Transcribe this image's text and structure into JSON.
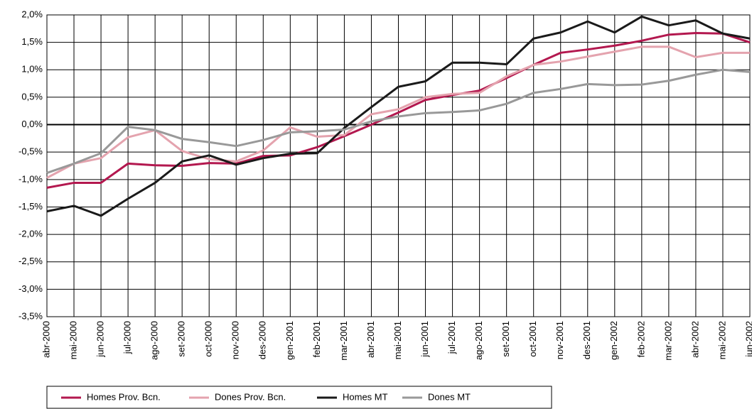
{
  "chart_data": {
    "type": "line",
    "categories": [
      "abr-2000",
      "mai-2000",
      "jun-2000",
      "jul-2000",
      "ago-2000",
      "set-2000",
      "oct-2000",
      "nov-2000",
      "des-2000",
      "gen-2001",
      "feb-2001",
      "mar-2001",
      "abr-2001",
      "mai-2001",
      "jun-2001",
      "jul-2001",
      "ago-2001",
      "set-2001",
      "oct-2001",
      "nov-2001",
      "des-2001",
      "gen-2002",
      "feb-2002",
      "mar-2002",
      "abr-2002",
      "mai-2002",
      "jun-2002"
    ],
    "series": [
      {
        "name": "Homes Prov. Bcn.",
        "color": "#b3184f",
        "values": [
          -1.15,
          -1.06,
          -1.06,
          -0.71,
          -0.74,
          -0.75,
          -0.7,
          -0.71,
          -0.57,
          -0.56,
          -0.41,
          -0.21,
          0.0,
          0.22,
          0.45,
          0.54,
          0.62,
          0.85,
          1.09,
          1.31,
          1.37,
          1.44,
          1.53,
          1.64,
          1.67,
          1.66,
          1.5
        ]
      },
      {
        "name": "Dones Prov. Bcn.",
        "color": "#e4a3ae",
        "values": [
          -0.97,
          -0.71,
          -0.61,
          -0.23,
          -0.1,
          -0.48,
          -0.63,
          -0.67,
          -0.47,
          -0.05,
          -0.22,
          -0.19,
          0.19,
          0.28,
          0.5,
          0.56,
          0.58,
          0.88,
          1.09,
          1.15,
          1.24,
          1.33,
          1.42,
          1.42,
          1.23,
          1.31,
          1.31
        ]
      },
      {
        "name": "Homes MT",
        "color": "#1a1a1a",
        "values": [
          -1.58,
          -1.48,
          -1.66,
          -1.35,
          -1.06,
          -0.67,
          -0.56,
          -0.73,
          -0.61,
          -0.53,
          -0.52,
          -0.06,
          0.32,
          0.69,
          0.79,
          1.13,
          1.13,
          1.1,
          1.57,
          1.68,
          1.88,
          1.68,
          1.97,
          1.81,
          1.9,
          1.66,
          1.57
        ]
      },
      {
        "name": "Dones MT",
        "color": "#999999",
        "values": [
          -0.88,
          -0.71,
          -0.52,
          -0.04,
          -0.1,
          -0.26,
          -0.32,
          -0.39,
          -0.28,
          -0.14,
          -0.12,
          -0.09,
          0.06,
          0.15,
          0.21,
          0.23,
          0.26,
          0.38,
          0.58,
          0.65,
          0.74,
          0.72,
          0.73,
          0.8,
          0.91,
          1.0,
          0.96
        ]
      }
    ],
    "ylim": [
      -3.5,
      2.0
    ],
    "yticks": [
      {
        "value": -3.5,
        "label": "-3,5%"
      },
      {
        "value": -3.0,
        "label": "-3,0%"
      },
      {
        "value": -2.5,
        "label": "-2,5%"
      },
      {
        "value": -2.0,
        "label": "-2,0%"
      },
      {
        "value": -1.5,
        "label": "-1,5%"
      },
      {
        "value": -1.0,
        "label": "-1,0%"
      },
      {
        "value": -0.5,
        "label": "-0,5%"
      },
      {
        "value": 0,
        "label": "0,0%"
      },
      {
        "value": 0.5,
        "label": "0,5%"
      },
      {
        "value": 1.0,
        "label": "1,0%"
      },
      {
        "value": 1.5,
        "label": "1,5%"
      },
      {
        "value": 2.0,
        "label": "2,0%"
      }
    ],
    "grid": true,
    "legend": "bottom"
  }
}
